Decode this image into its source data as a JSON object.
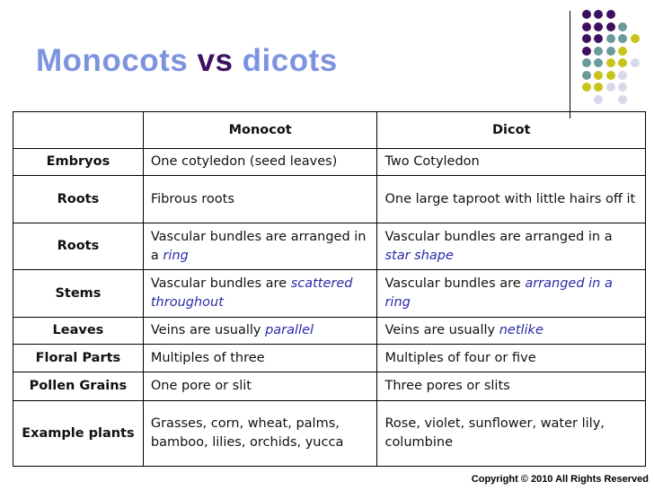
{
  "title": {
    "part1": "Monocots",
    "part2": "vs",
    "part3": "dicots"
  },
  "colors": {
    "title_blue": "#7e93e0",
    "title_purple": "#3d1160",
    "dot_purple": "#3d1160",
    "dot_teal": "#6a9a9a",
    "dot_yellow": "#c8c41a",
    "dot_lavender": "#d8d8ea",
    "emphasis": "#2a2aa8"
  },
  "table": {
    "headers": [
      "",
      "Monocot",
      "Dicot"
    ],
    "rows": [
      {
        "label": "Embryos",
        "monocot": {
          "text": "One cotyledon (seed leaves)",
          "em": ""
        },
        "dicot": {
          "text": "Two Cotyledon",
          "em": ""
        }
      },
      {
        "label": "Roots",
        "monocot": {
          "text": "Fibrous roots",
          "em": ""
        },
        "dicot": {
          "text": "One large taproot with little hairs off it",
          "em": ""
        }
      },
      {
        "label": "Roots",
        "monocot": {
          "text": "Vascular bundles are arranged in a ",
          "em": "ring"
        },
        "dicot": {
          "text": "Vascular bundles are arranged in a ",
          "em": "star shape"
        }
      },
      {
        "label": "Stems",
        "monocot": {
          "text": "Vascular bundles are ",
          "em": "scattered throughout"
        },
        "dicot": {
          "text": "Vascular bundles are ",
          "em": "arranged in a ring"
        }
      },
      {
        "label": "Leaves",
        "monocot": {
          "text": "Veins are usually ",
          "em": "parallel"
        },
        "dicot": {
          "text": "Veins are usually ",
          "em": "netlike"
        }
      },
      {
        "label": "Floral  Parts",
        "monocot": {
          "text": "Multiples of three",
          "em": ""
        },
        "dicot": {
          "text": "Multiples of four or five",
          "em": ""
        }
      },
      {
        "label": "Pollen Grains",
        "monocot": {
          "text": "One pore or slit",
          "em": ""
        },
        "dicot": {
          "text": "Three pores or slits",
          "em": ""
        }
      },
      {
        "label": "Example plants",
        "monocot": {
          "text": "Grasses, corn, wheat, palms, bamboo, lilies, orchids, yucca",
          "em": ""
        },
        "dicot": {
          "text": "Rose, violet, sunflower, water lily, columbine",
          "em": ""
        }
      }
    ]
  },
  "footer": {
    "copyright": "Copyright © 2010 All Rights Reserved"
  }
}
